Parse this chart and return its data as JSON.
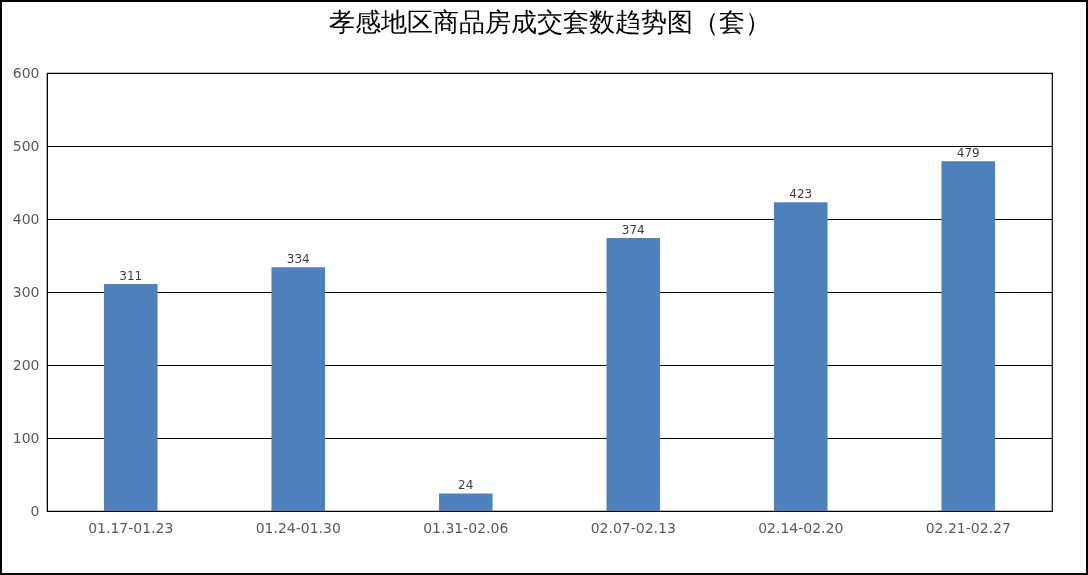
{
  "chart_data": {
    "type": "bar",
    "title": "孝感地区商品房成交套数趋势图（套）",
    "categories": [
      "01.17-01.23",
      "01.24-01.30",
      "01.31-02.06",
      "02.07-02.13",
      "02.14-02.20",
      "02.21-02.27"
    ],
    "values": [
      311,
      334,
      24,
      374,
      423,
      479
    ],
    "color": "#4f81bd",
    "ylim": [
      0,
      600
    ],
    "yticks": [
      0,
      100,
      200,
      300,
      400,
      500,
      600
    ],
    "grid": "y",
    "data_labels": true
  }
}
